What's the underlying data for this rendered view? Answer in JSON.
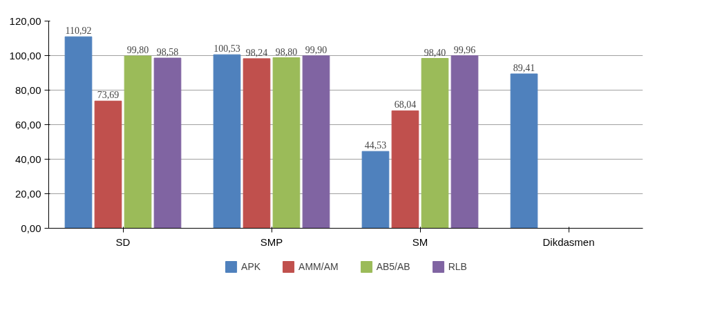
{
  "chart_data": {
    "type": "bar",
    "categories": [
      "SD",
      "SMP",
      "SM",
      "Dikdasmen"
    ],
    "series": [
      {
        "name": "APK",
        "color": "#4f81bd",
        "values": [
          110.92,
          100.53,
          44.53,
          89.41
        ],
        "value_labels": [
          "110,92",
          "100,53",
          "44,53",
          "89,41"
        ]
      },
      {
        "name": "AMM/AM",
        "color": "#c0504d",
        "values": [
          73.69,
          98.24,
          68.04,
          null
        ],
        "value_labels": [
          "73,69",
          "98,24",
          "68,04",
          null
        ]
      },
      {
        "name": "AB5/AB",
        "color": "#9bbb59",
        "values": [
          99.8,
          98.8,
          98.4,
          null
        ],
        "value_labels": [
          "99,80",
          "98,80",
          "98,40",
          null
        ]
      },
      {
        "name": "RLB",
        "color": "#8064a2",
        "values": [
          98.58,
          99.9,
          99.96,
          null
        ],
        "value_labels": [
          "98,58",
          "99,90",
          "99,96",
          null
        ]
      }
    ],
    "ylim": [
      0,
      120
    ],
    "yticks": [
      {
        "value": 0,
        "label": "0,00"
      },
      {
        "value": 20,
        "label": "20,00"
      },
      {
        "value": 40,
        "label": "40,00"
      },
      {
        "value": 60,
        "label": "60,00"
      },
      {
        "value": 80,
        "label": "80,00"
      },
      {
        "value": 100,
        "label": "100,00"
      },
      {
        "value": 120,
        "label": "120,00"
      }
    ],
    "grid": "y",
    "legend": "bottom"
  }
}
